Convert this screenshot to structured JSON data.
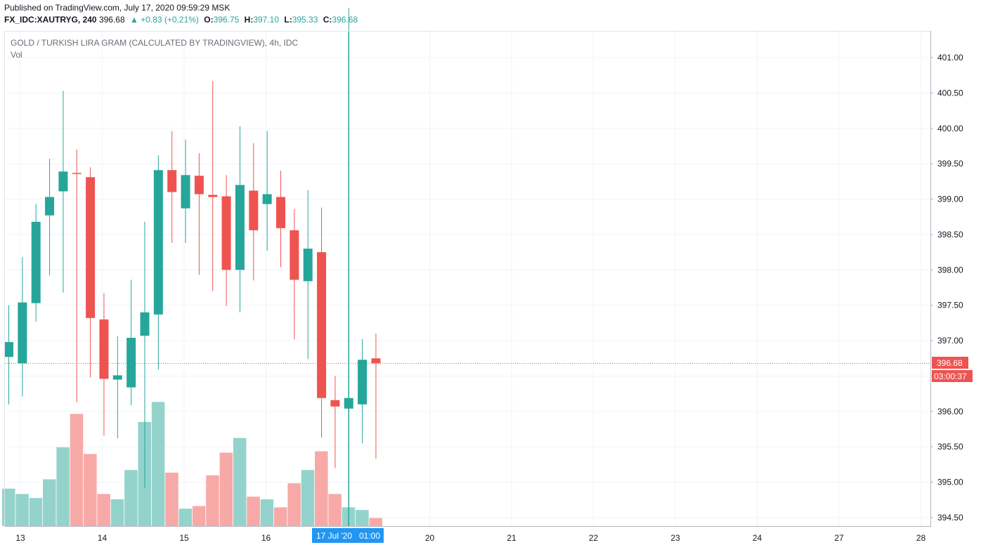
{
  "header": {
    "published": "Published on TradingView.com, July 17, 2020 09:59:29 MSK",
    "symbol": "FX_IDC:XAUTRYG, 240",
    "last": "396.68",
    "change": "▲ +0.83 (+0.21%)",
    "o_label": "O:",
    "o_value": "396.75",
    "h_label": "H:",
    "h_value": "397.10",
    "l_label": "L:",
    "l_value": "395.33",
    "c_label": "C:",
    "c_value": "396.68"
  },
  "legend": {
    "title": "GOLD / TURKISH LIRA GRAM (CALCULATED BY TRADINGVIEW), 4h, IDC",
    "volume": "Vol"
  },
  "price_tags": {
    "last_price": "396.68",
    "countdown": "03:00:37"
  },
  "crosshair": {
    "date_label": "17 Jul '20",
    "time_label": "01:00"
  },
  "colors": {
    "up": "#26a69a",
    "down": "#ef5350",
    "up_volume": "#93d3cc",
    "down_volume": "#f7a9a7",
    "grid": "#f0f3fa",
    "crosshair_badge": "#2196f3"
  },
  "chart_data": {
    "type": "candlestick",
    "title": "GOLD / TURKISH LIRA GRAM (CALCULATED BY TRADINGVIEW), 4h, IDC",
    "interval": "4h",
    "y_ticks": [
      "394.50",
      "395.00",
      "395.50",
      "396.00",
      "396.50",
      "397.00",
      "397.50",
      "398.00",
      "398.50",
      "399.00",
      "399.50",
      "400.00",
      "400.50",
      "401.00"
    ],
    "x_ticks": [
      "13",
      "14",
      "15",
      "16",
      "20",
      "21",
      "22",
      "23",
      "24",
      "27",
      "28"
    ],
    "ylim": [
      394.35,
      401.65
    ],
    "last_price": 396.68,
    "candles": [
      {
        "o": 396.77,
        "h": 397.5,
        "l": 396.1,
        "c": 396.98,
        "v": 28
      },
      {
        "o": 396.68,
        "h": 398.18,
        "l": 396.21,
        "c": 397.54,
        "v": 24
      },
      {
        "o": 397.53,
        "h": 398.93,
        "l": 397.27,
        "c": 398.68,
        "v": 21
      },
      {
        "o": 398.77,
        "h": 399.57,
        "l": 397.92,
        "c": 399.03,
        "v": 35
      },
      {
        "o": 399.11,
        "h": 400.53,
        "l": 397.68,
        "c": 399.39,
        "v": 59
      },
      {
        "o": 399.37,
        "h": 399.7,
        "l": 396.13,
        "c": 399.36,
        "v": 84
      },
      {
        "o": 399.31,
        "h": 399.45,
        "l": 396.48,
        "c": 397.32,
        "v": 54
      },
      {
        "o": 397.3,
        "h": 397.67,
        "l": 395.66,
        "c": 396.46,
        "v": 24
      },
      {
        "o": 396.45,
        "h": 397.06,
        "l": 395.62,
        "c": 396.51,
        "v": 20
      },
      {
        "o": 396.34,
        "h": 397.86,
        "l": 396.09,
        "c": 397.04,
        "v": 42
      },
      {
        "o": 397.07,
        "h": 398.68,
        "l": 394.92,
        "c": 397.4,
        "v": 78
      },
      {
        "o": 397.37,
        "h": 399.62,
        "l": 396.59,
        "c": 399.41,
        "v": 93
      },
      {
        "o": 399.41,
        "h": 399.96,
        "l": 398.38,
        "c": 399.1,
        "v": 40
      },
      {
        "o": 398.87,
        "h": 399.84,
        "l": 398.38,
        "c": 399.34,
        "v": 13
      },
      {
        "o": 399.33,
        "h": 399.65,
        "l": 397.93,
        "c": 399.07,
        "v": 15
      },
      {
        "o": 399.06,
        "h": 400.67,
        "l": 397.7,
        "c": 399.03,
        "v": 38
      },
      {
        "o": 399.04,
        "h": 399.34,
        "l": 397.49,
        "c": 398.0,
        "v": 55
      },
      {
        "o": 398.0,
        "h": 400.03,
        "l": 397.4,
        "c": 399.2,
        "v": 66
      },
      {
        "o": 399.12,
        "h": 399.79,
        "l": 397.85,
        "c": 398.56,
        "v": 22
      },
      {
        "o": 398.93,
        "h": 399.96,
        "l": 398.27,
        "c": 399.07,
        "v": 20
      },
      {
        "o": 399.03,
        "h": 399.4,
        "l": 398.04,
        "c": 398.59,
        "v": 14
      },
      {
        "o": 398.56,
        "h": 398.86,
        "l": 397.02,
        "c": 397.86,
        "v": 32
      },
      {
        "o": 397.84,
        "h": 399.13,
        "l": 396.74,
        "c": 398.3,
        "v": 42
      },
      {
        "o": 398.25,
        "h": 398.88,
        "l": 395.63,
        "c": 396.19,
        "v": 56
      },
      {
        "o": 396.16,
        "h": 396.5,
        "l": 395.2,
        "c": 396.07,
        "v": 24
      },
      {
        "o": 396.04,
        "h": 401.7,
        "l": 395.1,
        "c": 396.19,
        "v": 14
      },
      {
        "o": 396.1,
        "h": 397.02,
        "l": 395.55,
        "c": 396.73,
        "v": 12
      },
      {
        "o": 396.75,
        "h": 397.1,
        "l": 395.33,
        "c": 396.68,
        "v": 6
      }
    ]
  }
}
